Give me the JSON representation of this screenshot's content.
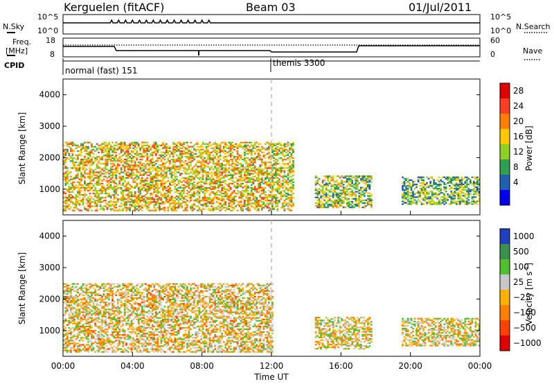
{
  "header": {
    "station": "Kerguelen (fitACF)",
    "beam": "Beam 03",
    "date": "01/Jul/2011"
  },
  "nsky_panel": {
    "left_label": "N.Sky",
    "right_label": "N.Search",
    "y_ticks_left": [
      "10^5",
      "10^0"
    ],
    "y_ticks_right": [
      "10^5",
      "10^0"
    ]
  },
  "freq_panel": {
    "left_label_1": "Freq.",
    "left_label_2": "[MHz]",
    "right_label": "Nave",
    "y_ticks_left": [
      "18",
      "8"
    ],
    "y_ticks_right": [
      "60",
      "0"
    ]
  },
  "cpid_panel": {
    "label": "CPID",
    "modes": [
      {
        "name": "normal (fast) 151"
      },
      {
        "name": "themis 3300"
      }
    ]
  },
  "x_axis": {
    "label": "Time UT",
    "ticks": [
      "00:00",
      "04:00",
      "08:00",
      "12:00",
      "16:00",
      "20:00",
      "00:00"
    ]
  },
  "power_colorbar": {
    "label": "Power [dB]",
    "ticks": [
      "28",
      "24",
      "20",
      "16",
      "12",
      "8",
      "4"
    ],
    "colors": [
      "#e00000",
      "#ff4020",
      "#ff8000",
      "#ffc800",
      "#90d020",
      "#30a050",
      "#2060b0",
      "#0000f0"
    ]
  },
  "velocity_colorbar": {
    "label_main": "Velocity [m s",
    "label_sup": "-1",
    "label_end": "]",
    "ticks": [
      "1000",
      "500",
      "100",
      "25",
      "−25",
      "−100",
      "−500",
      "−1000"
    ],
    "colors": [
      "#2040c0",
      "#3a9050",
      "#50c030",
      "#c8c8c8",
      "#ffb000",
      "#ff8000",
      "#ff4000",
      "#e00000"
    ]
  },
  "chart_data": [
    {
      "type": "heatmap",
      "title": "Power",
      "ylabel": "Slant Range [km]",
      "xlabel": "Time UT",
      "xlim": [
        "00:00",
        "24:00"
      ],
      "ylim": [
        180,
        4500
      ],
      "y_ticks": [
        1000,
        2000,
        3000,
        4000
      ],
      "colorbar_range_dB": [
        0,
        32
      ],
      "regions": [
        {
          "time_start": 0.0,
          "time_end": 12.0,
          "range_min_km": 300,
          "range_max_km": 2500,
          "power_dB": 18
        },
        {
          "time_start": 12.0,
          "time_end": 13.2,
          "range_min_km": 300,
          "range_max_km": 2500,
          "power_dB": 16
        },
        {
          "time_start": 14.5,
          "time_end": 17.8,
          "range_min_km": 400,
          "range_max_km": 1400,
          "power_dB": 14
        },
        {
          "time_start": 19.5,
          "time_end": 24.0,
          "range_min_km": 500,
          "range_max_km": 1400,
          "power_dB": 12
        }
      ]
    },
    {
      "type": "heatmap",
      "title": "Velocity",
      "ylabel": "Slant Range [km]",
      "xlabel": "Time UT",
      "xlim": [
        "00:00",
        "24:00"
      ],
      "ylim": [
        180,
        4500
      ],
      "y_ticks": [
        1000,
        2000,
        3000,
        4000
      ],
      "colorbar_range_ms": [
        -1000,
        1000
      ],
      "regions": [
        {
          "time_start": 0.0,
          "time_end": 12.0,
          "range_min_km": 300,
          "range_max_km": 2500,
          "velocity_ms": -50
        },
        {
          "time_start": 14.5,
          "time_end": 17.8,
          "range_min_km": 400,
          "range_max_km": 1400,
          "velocity_ms": 0
        },
        {
          "time_start": 19.5,
          "time_end": 24.0,
          "range_min_km": 500,
          "range_max_km": 1400,
          "velocity_ms": 0
        }
      ]
    }
  ]
}
